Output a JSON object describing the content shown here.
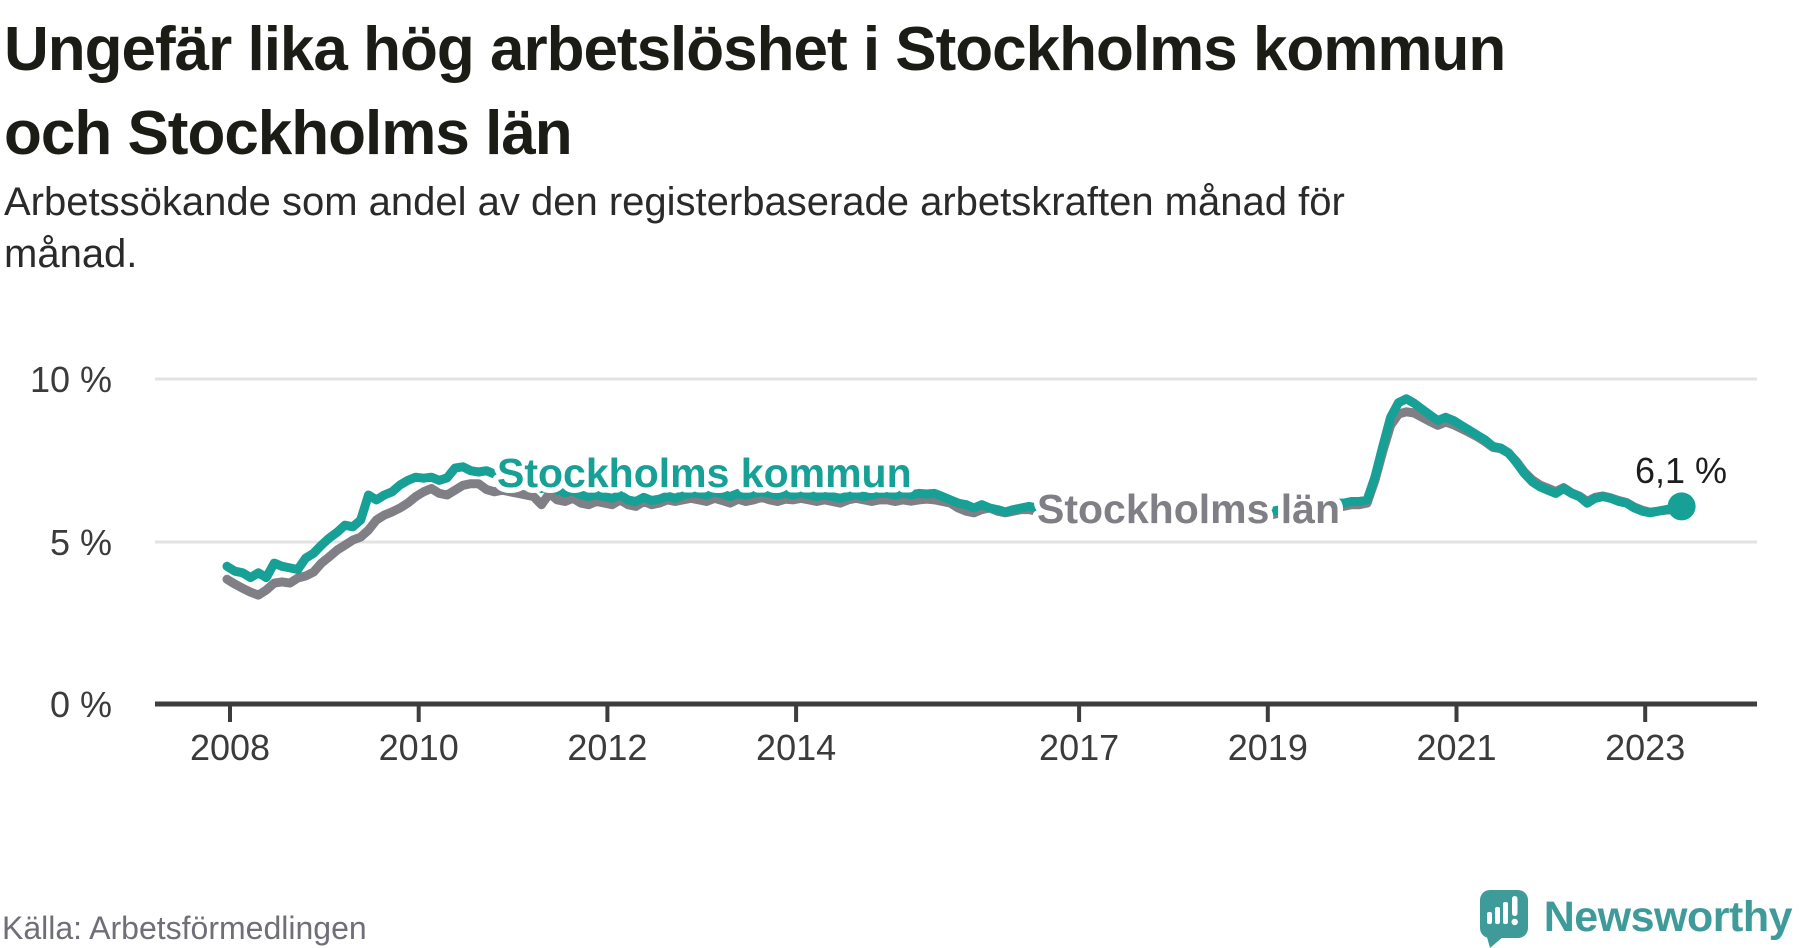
{
  "title": {
    "line1": "Ungefär lika hög arbetslöshet i Stockholms kommun",
    "line2": "och Stockholms län"
  },
  "subtitle": {
    "line1": "Arbetssökande som andel av den registerbaserade arbetskraften månad för",
    "line2": "månad."
  },
  "source": "Källa: Arbetsförmedlingen",
  "branding": {
    "wordmark": "Newsworthy",
    "logo_icon": "newsworthy-chart-bubble-icon"
  },
  "annotations": {
    "kommun_label": "Stockholms kommun",
    "lan_label": "Stockholms län",
    "end_value_label": "6,1 %"
  },
  "colors": {
    "kommun": "#17a096",
    "lan": "#807f86",
    "axis": "#3d3d3d",
    "grid": "#e3e3e3",
    "brand": "#3f9b99"
  },
  "chart_data": {
    "type": "line",
    "title": "Ungefär lika hög arbetslöshet i Stockholms kommun och Stockholms län",
    "subtitle": "Arbetssökande som andel av den registerbaserade arbetskraften månad för månad.",
    "unit": "percent",
    "frequency": "monthly",
    "x_start": "2008-01",
    "x_end": "2023-06",
    "x_tick_labels": [
      "2008",
      "2010",
      "2012",
      "2014",
      "2017",
      "2019",
      "2021",
      "2023"
    ],
    "y_tick_labels": [
      "0 %",
      "5 %",
      "10 %"
    ],
    "y_tick_values": [
      0,
      5,
      10
    ],
    "ylim": [
      0,
      11.5
    ],
    "grid": "horizontal-only",
    "legend_position": "inline-labels",
    "series": [
      {
        "name": "Stockholms kommun",
        "color": "#17a096",
        "values": [
          4.25,
          4.1,
          4.05,
          3.9,
          4.05,
          3.9,
          4.35,
          4.25,
          4.2,
          4.15,
          4.5,
          4.65,
          4.9,
          5.12,
          5.3,
          5.52,
          5.47,
          5.68,
          6.45,
          6.3,
          6.45,
          6.55,
          6.76,
          6.9,
          7.0,
          6.97,
          7.0,
          6.9,
          6.98,
          7.28,
          7.32,
          7.2,
          7.16,
          7.2,
          7.1,
          7.15,
          7.05,
          6.95,
          6.85,
          6.75,
          6.65,
          6.72,
          6.6,
          6.52,
          6.58,
          6.45,
          6.4,
          6.45,
          6.4,
          6.35,
          6.45,
          6.3,
          6.25,
          6.38,
          6.28,
          6.32,
          6.42,
          6.35,
          6.45,
          6.5,
          6.5,
          6.45,
          6.55,
          6.48,
          6.4,
          6.5,
          6.44,
          6.5,
          6.55,
          6.5,
          6.45,
          6.5,
          6.45,
          6.5,
          6.45,
          6.4,
          6.45,
          6.4,
          6.35,
          6.42,
          6.46,
          6.4,
          6.45,
          6.5,
          6.5,
          6.45,
          6.5,
          6.46,
          6.5,
          6.48,
          6.5,
          6.4,
          6.3,
          6.2,
          6.15,
          6.05,
          6.15,
          6.05,
          6.0,
          5.93,
          6.0,
          6.05,
          6.1,
          6.05,
          6.0,
          5.95,
          6.0,
          6.05,
          6.0,
          5.95,
          6.0,
          5.9,
          5.95,
          5.9,
          5.95,
          5.9,
          5.95,
          5.9,
          5.95,
          6.0,
          5.95,
          5.9,
          5.95,
          5.85,
          5.9,
          5.85,
          5.9,
          5.85,
          5.9,
          5.85,
          5.95,
          6.0,
          6.0,
          5.95,
          6.0,
          6.05,
          6.0,
          6.1,
          6.1,
          6.15,
          6.1,
          6.2,
          6.2,
          6.25,
          6.25,
          6.3,
          7.0,
          7.95,
          8.85,
          9.3,
          9.42,
          9.28,
          9.1,
          8.92,
          8.75,
          8.85,
          8.75,
          8.6,
          8.45,
          8.3,
          8.15,
          7.95,
          7.9,
          7.75,
          7.45,
          7.12,
          6.86,
          6.7,
          6.6,
          6.5,
          6.65,
          6.5,
          6.4,
          6.2,
          6.35,
          6.4,
          6.35,
          6.25,
          6.2,
          6.05,
          5.95,
          5.9,
          5.95,
          6.0,
          6.05,
          6.1
        ]
      },
      {
        "name": "Stockholms län",
        "color": "#807f86",
        "values": [
          3.85,
          3.7,
          3.57,
          3.45,
          3.36,
          3.52,
          3.73,
          3.77,
          3.73,
          3.89,
          3.95,
          4.07,
          4.35,
          4.54,
          4.75,
          4.9,
          5.06,
          5.15,
          5.37,
          5.68,
          5.83,
          5.93,
          6.05,
          6.2,
          6.4,
          6.55,
          6.65,
          6.5,
          6.45,
          6.6,
          6.75,
          6.8,
          6.8,
          6.62,
          6.55,
          6.6,
          6.55,
          6.5,
          6.45,
          6.4,
          6.15,
          6.5,
          6.3,
          6.25,
          6.35,
          6.2,
          6.15,
          6.25,
          6.2,
          6.15,
          6.3,
          6.15,
          6.1,
          6.25,
          6.15,
          6.2,
          6.3,
          6.25,
          6.3,
          6.35,
          6.3,
          6.25,
          6.35,
          6.28,
          6.2,
          6.32,
          6.25,
          6.3,
          6.38,
          6.3,
          6.25,
          6.32,
          6.3,
          6.35,
          6.3,
          6.25,
          6.3,
          6.25,
          6.2,
          6.3,
          6.35,
          6.3,
          6.25,
          6.3,
          6.3,
          6.25,
          6.3,
          6.26,
          6.3,
          6.32,
          6.3,
          6.25,
          6.2,
          6.05,
          5.95,
          5.9,
          6.0,
          6.05,
          5.95,
          5.9,
          5.95,
          6.0,
          6.0,
          5.95,
          5.9,
          5.85,
          5.9,
          5.95,
          5.9,
          5.85,
          5.9,
          5.8,
          5.85,
          5.8,
          5.85,
          5.8,
          5.85,
          5.8,
          5.85,
          5.9,
          5.85,
          5.8,
          5.85,
          5.75,
          5.8,
          5.75,
          5.8,
          5.75,
          5.8,
          5.75,
          5.85,
          5.9,
          5.9,
          5.85,
          5.9,
          5.95,
          5.9,
          6.0,
          6.0,
          6.05,
          6.0,
          6.1,
          6.1,
          6.15,
          6.15,
          6.2,
          6.9,
          7.8,
          8.6,
          8.95,
          9.02,
          8.98,
          8.85,
          8.72,
          8.6,
          8.7,
          8.62,
          8.5,
          8.38,
          8.25,
          8.1,
          7.92,
          7.88,
          7.74,
          7.48,
          7.16,
          6.92,
          6.76,
          6.66,
          6.56,
          6.68,
          6.52,
          6.42,
          6.25,
          6.38,
          6.42,
          6.36,
          6.28,
          6.22,
          6.08,
          5.98,
          5.92,
          5.95,
          5.98,
          6.0,
          6.02
        ]
      }
    ],
    "end_point": {
      "series": "Stockholms kommun",
      "value": 6.1,
      "label": "6,1 %"
    }
  }
}
